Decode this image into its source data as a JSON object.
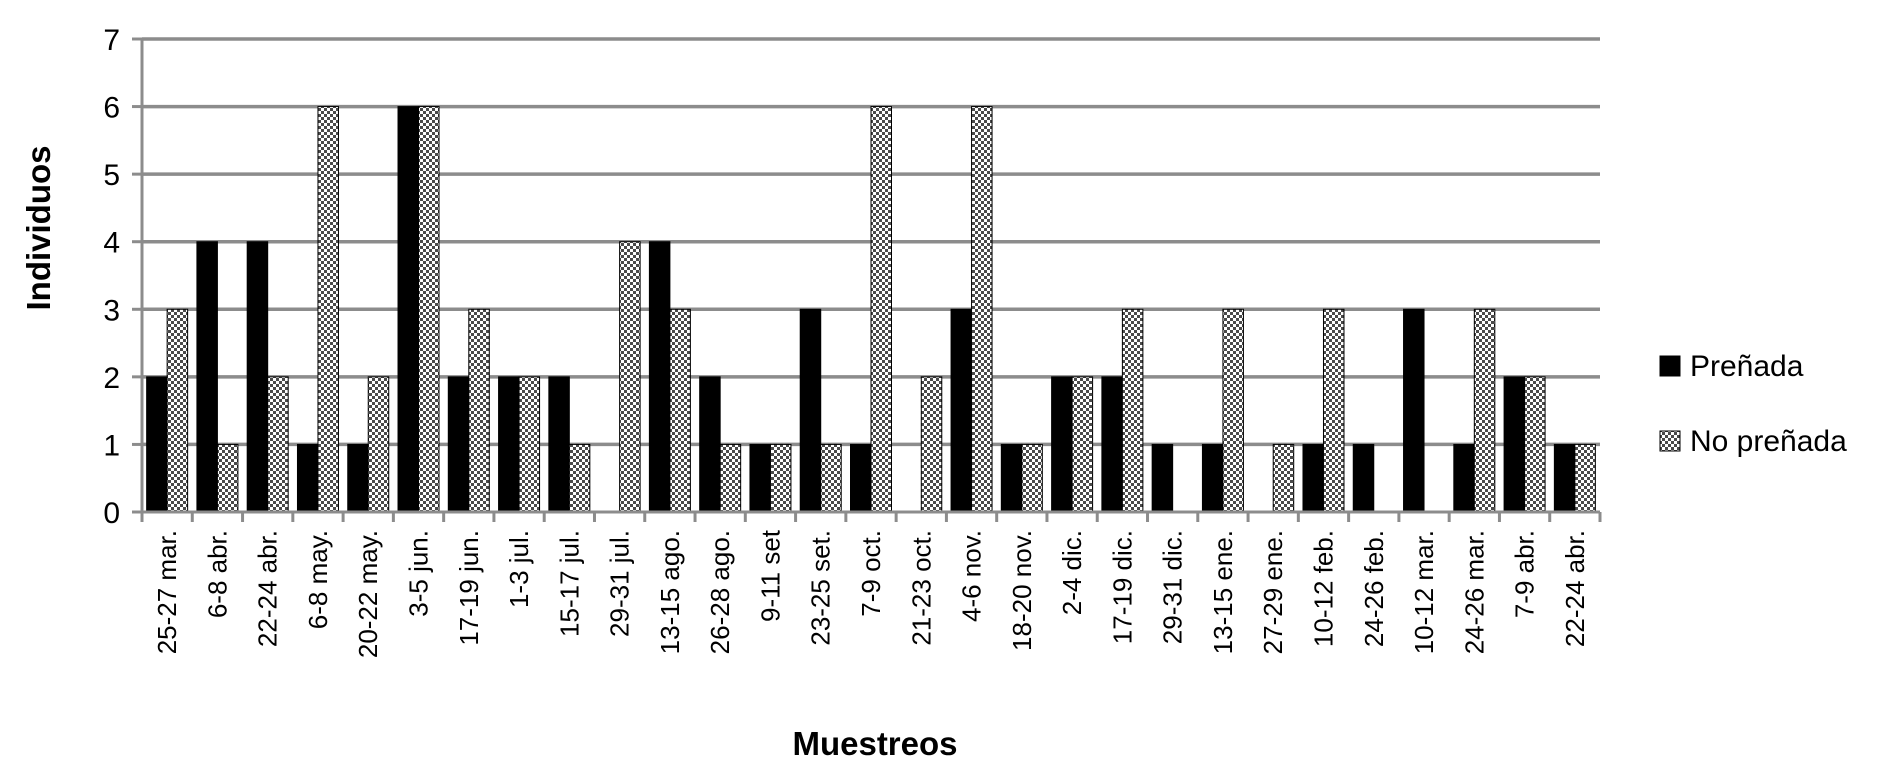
{
  "chart_data": {
    "type": "bar",
    "xlabel": "Muestreos",
    "ylabel": "Individuos",
    "ylim": [
      0,
      7
    ],
    "yticks": [
      0,
      1,
      2,
      3,
      4,
      5,
      6,
      7
    ],
    "grid": "horizontal",
    "legend_position": "right",
    "categories": [
      "25-27 mar.",
      "6-8 abr.",
      "22-24 abr.",
      "6-8 may.",
      "20-22 may.",
      "3-5 jun.",
      "17-19 jun.",
      "1-3 jul.",
      "15-17 jul.",
      "29-31 jul.",
      "13-15 ago.",
      "26-28 ago.",
      "9-11 set",
      "23-25 set.",
      "7-9 oct.",
      "21-23 oct.",
      "4-6 nov.",
      "18-20 nov.",
      "2-4 dic.",
      "17-19 dic.",
      "29-31 dic.",
      "13-15 ene.",
      "27-29 ene.",
      "10-12 feb.",
      "24-26 feb.",
      "10-12 mar.",
      "24-26 mar.",
      "7-9 abr.",
      "22-24 abr."
    ],
    "series": [
      {
        "name": "Preñada",
        "color": "#000000",
        "pattern": "solid",
        "values": [
          2,
          4,
          4,
          1,
          1,
          6,
          2,
          2,
          2,
          0,
          4,
          2,
          1,
          3,
          1,
          0,
          3,
          1,
          2,
          2,
          1,
          1,
          0,
          1,
          1,
          3,
          1,
          2,
          1
        ]
      },
      {
        "name": "No preñada",
        "color": "#ffffff",
        "pattern": "checkered",
        "values": [
          3,
          1,
          2,
          6,
          2,
          6,
          3,
          2,
          1,
          4,
          3,
          1,
          1,
          1,
          6,
          2,
          6,
          1,
          2,
          3,
          0,
          3,
          1,
          3,
          0,
          0,
          3,
          2,
          1
        ]
      }
    ]
  }
}
